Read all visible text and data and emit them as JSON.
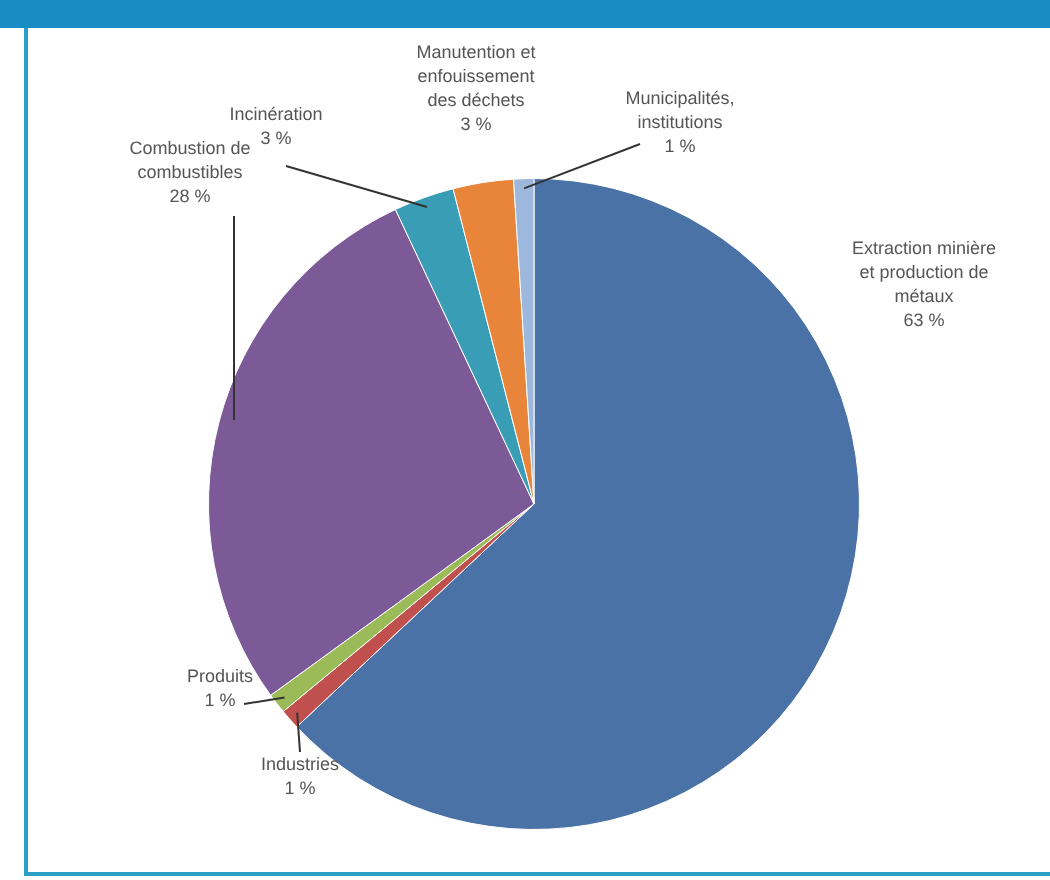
{
  "chart_data": {
    "type": "pie",
    "categories": [
      "Extraction minière et production de métaux",
      "Industries",
      "Produits",
      "Combustion de combustibles",
      "Incinération",
      "Manutention et enfouissement des déchets",
      "Municipalités, institutions"
    ],
    "values": [
      63,
      1,
      1,
      28,
      3,
      3,
      1
    ],
    "colors": [
      "#4a72a6",
      "#c0504d",
      "#9bbb59",
      "#7b5a97",
      "#3a9db6",
      "#e8853a",
      "#9db8dc"
    ],
    "value_labels": [
      "63 %",
      "1 %",
      "1 %",
      "28 %",
      "3 %",
      "3 %",
      "1 %"
    ],
    "legend": false
  }
}
